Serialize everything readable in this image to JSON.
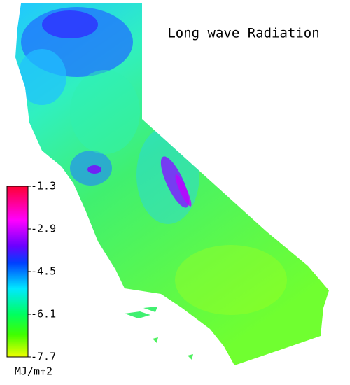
{
  "title": "Long wave Radiation",
  "colorbar": {
    "ticks": [
      -1.3,
      -2.9,
      -4.5,
      -6.1,
      -7.7
    ],
    "unit": "MJ/m↑2"
  }
}
